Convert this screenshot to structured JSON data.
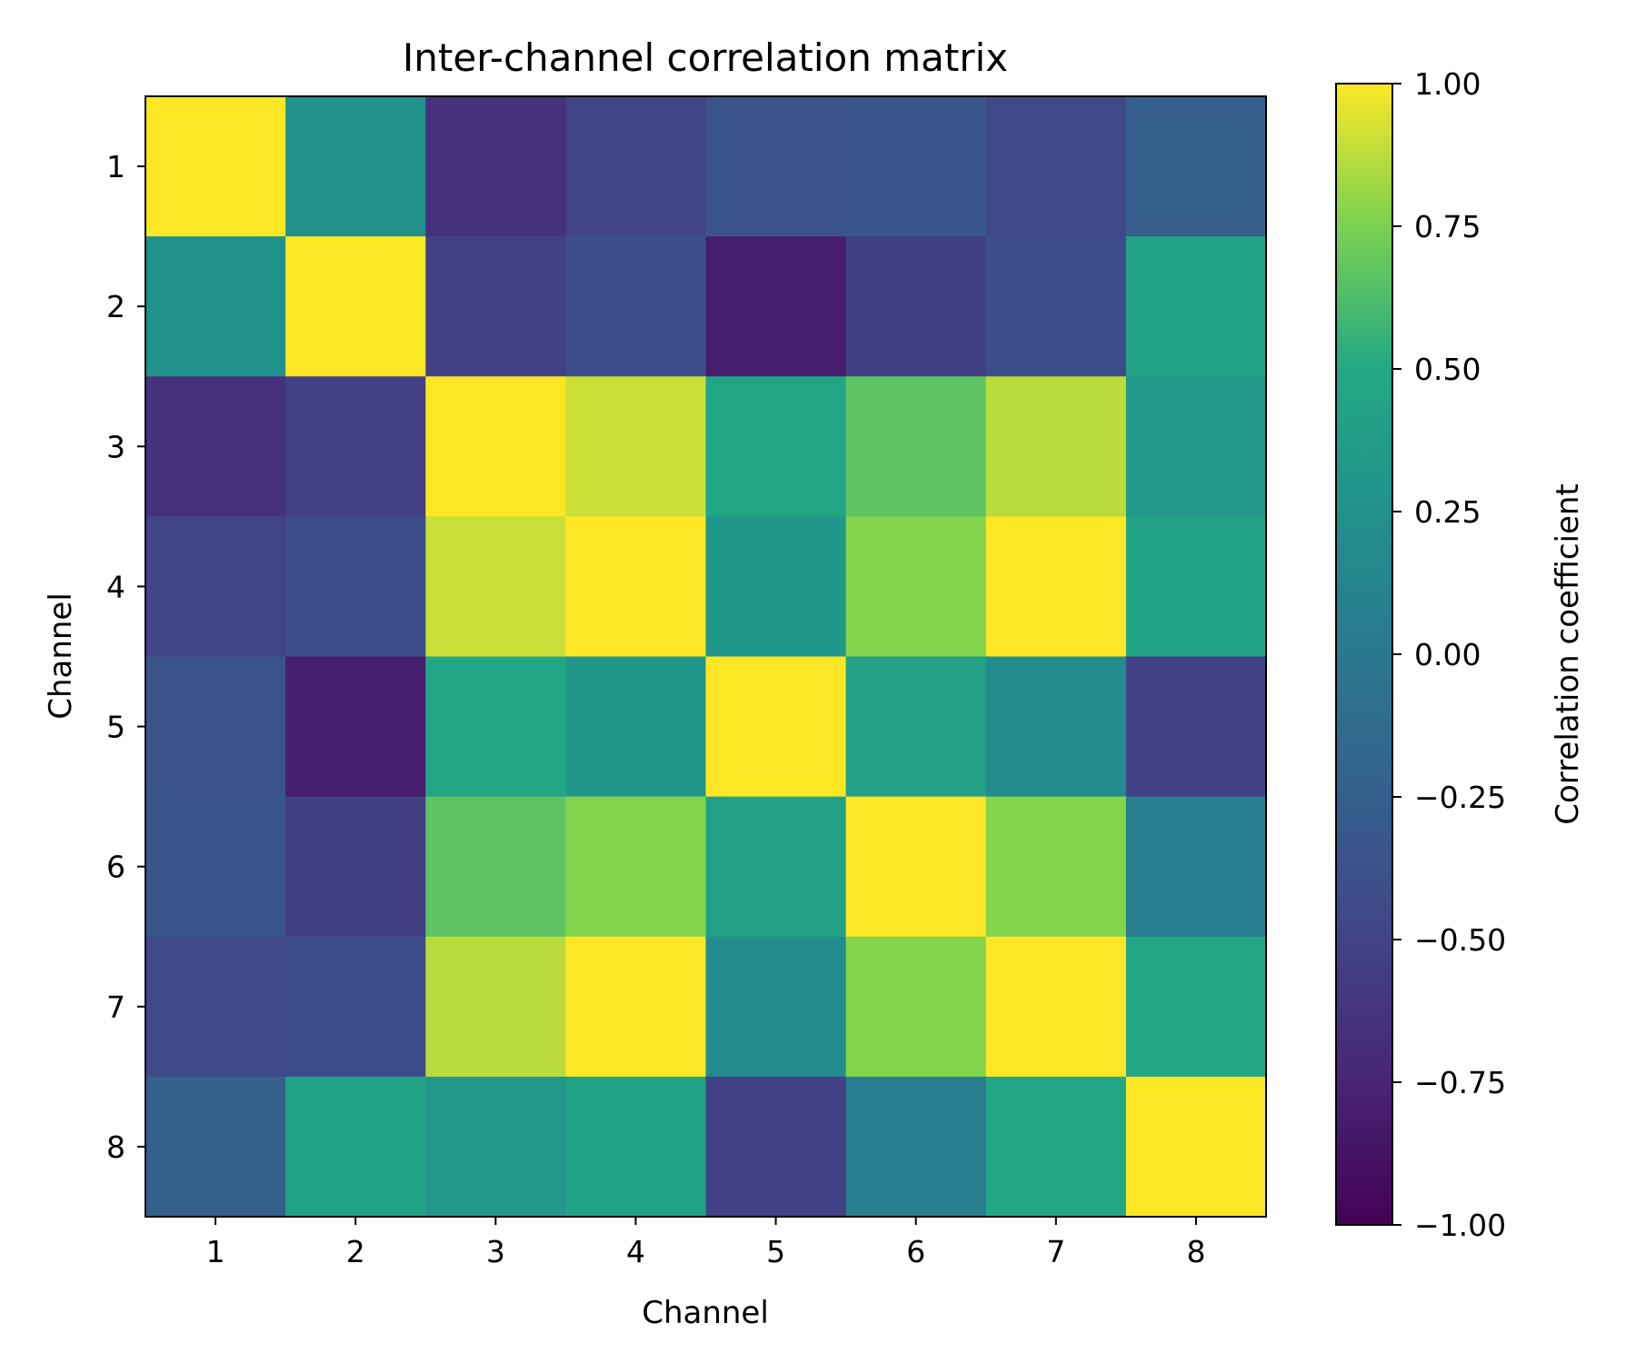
{
  "chart_data": {
    "type": "heatmap",
    "title": "Inter-channel correlation matrix",
    "xlabel": "Channel",
    "ylabel": "Channel",
    "x_categories": [
      "1",
      "2",
      "3",
      "4",
      "5",
      "6",
      "7",
      "8"
    ],
    "y_categories": [
      "1",
      "2",
      "3",
      "4",
      "5",
      "6",
      "7",
      "8"
    ],
    "values": [
      [
        1.0,
        0.25,
        -0.65,
        -0.5,
        -0.35,
        -0.33,
        -0.45,
        -0.25
      ],
      [
        0.25,
        1.0,
        -0.52,
        -0.42,
        -0.8,
        -0.55,
        -0.42,
        0.43
      ],
      [
        -0.65,
        -0.52,
        1.0,
        0.9,
        0.47,
        0.67,
        0.87,
        0.33
      ],
      [
        -0.5,
        -0.42,
        0.9,
        1.0,
        0.3,
        0.77,
        1.0,
        0.45
      ],
      [
        -0.35,
        -0.8,
        0.47,
        0.3,
        1.0,
        0.42,
        0.2,
        -0.52
      ],
      [
        -0.33,
        -0.55,
        0.67,
        0.77,
        0.42,
        1.0,
        0.77,
        0.05
      ],
      [
        -0.45,
        -0.42,
        0.87,
        1.0,
        0.2,
        0.77,
        1.0,
        0.47
      ],
      [
        -0.25,
        0.43,
        0.33,
        0.45,
        -0.52,
        0.05,
        0.47,
        1.0
      ]
    ],
    "colormap": "viridis",
    "colorbar": {
      "label": "Correlation coefficient",
      "range": [
        -1.0,
        1.0
      ],
      "ticks": [
        1.0,
        0.75,
        0.5,
        0.25,
        0.0,
        -0.25,
        -0.5,
        -0.75,
        -1.0
      ],
      "tick_labels": [
        "1.00",
        "0.75",
        "0.50",
        "0.25",
        "0.00",
        "−0.25",
        "−0.50",
        "−0.75",
        "−1.00"
      ]
    }
  }
}
